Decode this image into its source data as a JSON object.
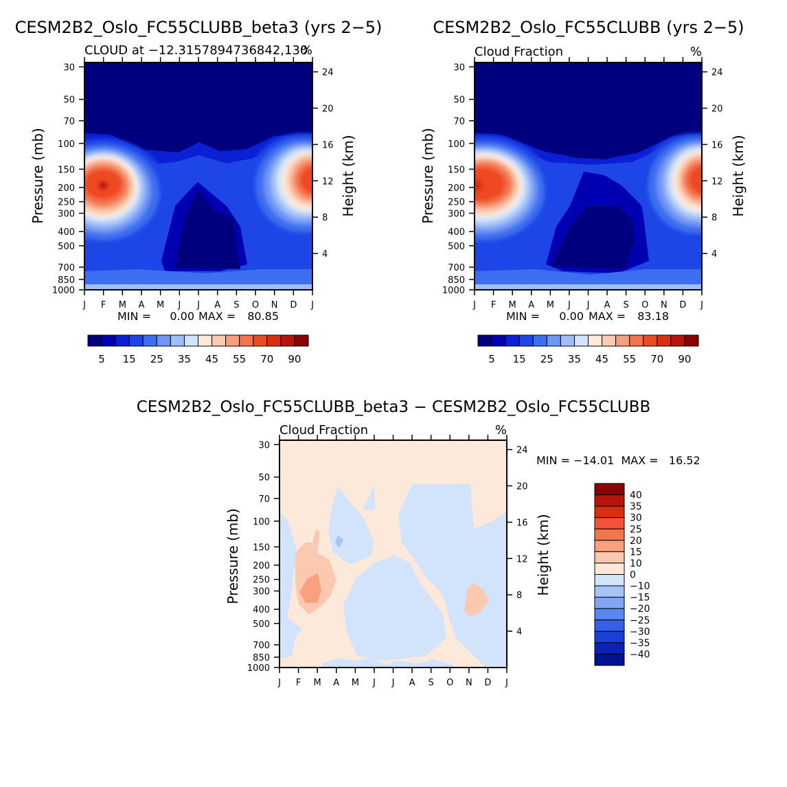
{
  "colors": {
    "abs_scale": [
      "#00007f",
      "#0000b2",
      "#0a1fd6",
      "#1e46e6",
      "#3c6ef0",
      "#6e96f5",
      "#a0bef8",
      "#d2e4fb",
      "#fde9d9",
      "#fbc9b0",
      "#f79f7c",
      "#f4724c",
      "#ee4a22",
      "#da2e0e",
      "#b81408",
      "#8b0000"
    ],
    "diff_scale": [
      "#8b0000",
      "#b81408",
      "#da2e0e",
      "#f4503a",
      "#f77448",
      "#f9a080",
      "#fbc9b0",
      "#fde9d9",
      "#d2e4fb",
      "#a6c4fb",
      "#82a6f6",
      "#5a86f0",
      "#3560e6",
      "#1a3fd4",
      "#0a23b6",
      "#00128f"
    ]
  },
  "shared": {
    "months": [
      "J",
      "F",
      "M",
      "A",
      "M",
      "J",
      "J",
      "A",
      "S",
      "O",
      "N",
      "D",
      "J"
    ],
    "pressure_ticks": [
      "30",
      "50",
      "70",
      "100",
      "150",
      "200",
      "250",
      "300",
      "400",
      "500",
      "700",
      "850",
      "1000"
    ],
    "height_ticks": [
      "24",
      "20",
      "16",
      "12",
      "8",
      "4"
    ],
    "ylabel": "Pressure (mb)",
    "y2label": "Height (km)"
  },
  "chart_data": [
    {
      "type": "contour",
      "title": "CESM2B2_Oslo_FC55CLUBB_beta3 (yrs 2−5)",
      "left_subtitle": "CLOUD at −12.3157894736842,130",
      "right_subtitle": "%",
      "xlabel": "",
      "ylabel": "Pressure (mb)",
      "y2label": "Height (km)",
      "min_label": "MIN =",
      "min_value": "0.00",
      "max_label": "MAX =",
      "max_value": "80.85",
      "colorbar_ticks": [
        "5",
        "15",
        "25",
        "35",
        "45",
        "55",
        "70",
        "90"
      ],
      "levels": [
        5,
        10,
        15,
        20,
        25,
        30,
        35,
        40,
        45,
        50,
        55,
        60,
        70,
        80,
        90
      ]
    },
    {
      "type": "contour",
      "title": "CESM2B2_Oslo_FC55CLUBB (yrs 2−5)",
      "left_subtitle": "Cloud Fraction",
      "right_subtitle": "%",
      "xlabel": "",
      "ylabel": "Pressure (mb)",
      "y2label": "Height (km)",
      "min_label": "MIN =",
      "min_value": "0.00",
      "max_label": "MAX =",
      "max_value": "83.18",
      "colorbar_ticks": [
        "5",
        "15",
        "25",
        "35",
        "45",
        "55",
        "70",
        "90"
      ],
      "levels": [
        5,
        10,
        15,
        20,
        25,
        30,
        35,
        40,
        45,
        50,
        55,
        60,
        70,
        80,
        90
      ]
    },
    {
      "type": "contour",
      "title": "CESM2B2_Oslo_FC55CLUBB_beta3 − CESM2B2_Oslo_FC55CLUBB",
      "left_subtitle": "Cloud Fraction",
      "right_subtitle": "%",
      "xlabel": "",
      "ylabel": "Pressure (mb)",
      "y2label": "Height (km)",
      "minmax_text": "MIN = −14.01  MAX =   16.52",
      "colorbar_ticks": [
        "40",
        "35",
        "30",
        "25",
        "20",
        "15",
        "10",
        "0",
        "−10",
        "−15",
        "−20",
        "−25",
        "−30",
        "−35",
        "−40"
      ],
      "levels": [
        -40,
        -35,
        -30,
        -25,
        -20,
        -15,
        -10,
        0,
        10,
        15,
        20,
        25,
        30,
        35,
        40
      ]
    }
  ]
}
